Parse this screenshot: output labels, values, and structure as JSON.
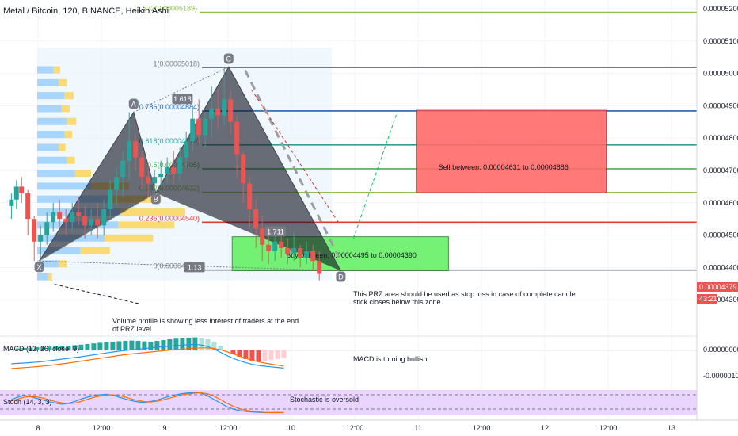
{
  "header": {
    "title": "Metal / Bitcoin, 120, BINANCE, Heikin Ashi"
  },
  "price_axis": {
    "ticks": [
      "0.00005200",
      "0.00005100",
      "0.00005000",
      "0.00004900",
      "0.00004800",
      "0.00004700",
      "0.00004600",
      "0.00004500",
      "0.00004400",
      "0.00004300"
    ],
    "tick_values": [
      5.2e-05,
      5.1e-05,
      5e-05,
      4.9e-05,
      4.8e-05,
      4.7e-05,
      4.6e-05,
      4.5e-05,
      4.4e-05,
      4.3e-05
    ],
    "current_price": "0.00004379",
    "countdown": "43:21"
  },
  "time_axis": {
    "labels": [
      "8",
      "12:00",
      "9",
      "12:00",
      "10",
      "12:00",
      "11",
      "12:00",
      "12",
      "12:00",
      "13"
    ],
    "label_t": [
      0,
      1,
      2,
      3,
      4,
      5,
      6,
      7,
      8,
      9,
      10
    ]
  },
  "colors": {
    "up": "#26a69a",
    "down": "#ef5350",
    "pattern_fill": "#131722",
    "sell_box": "#ff6b6b",
    "buy_box": "#5ef05e",
    "macd_panel": "#ffffff",
    "stoch_panel": "#e9d5ff",
    "fib_green": "#4caf50",
    "fib_teal": "#2aa198",
    "fib_blue": "#2962ff",
    "fib_red": "#e53935",
    "fib_grey": "#787b86",
    "fib_lime": "#8bc34a"
  },
  "fib_levels": [
    {
      "label": "1.272(0.00005189)",
      "price": 5.189e-05,
      "color": "#8bc34a"
    },
    {
      "label": "1(0.00005018)",
      "price": 5.018e-05,
      "color": "#787b86"
    },
    {
      "label": "0.786(0.00004884)",
      "price": 4.884e-05,
      "color": "#1e63b5"
    },
    {
      "label": "0.618(0.00004779)",
      "price": 4.779e-05,
      "color": "#2aa198"
    },
    {
      "label": "0.5(0.00004705)",
      "price": 4.705e-05,
      "color": "#4caf50"
    },
    {
      "label": "0.382(0.00004632)",
      "price": 4.632e-05,
      "color": "#8bc34a"
    },
    {
      "label": "0.236(0.00004540)",
      "price": 4.54e-05,
      "color": "#e53935"
    },
    {
      "label": "0(0.00004392)",
      "price": 4.392e-05,
      "color": "#787b86"
    }
  ],
  "pattern_points": [
    {
      "label": "X",
      "t": 0.02,
      "p": 4.42e-05
    },
    {
      "label": "A",
      "t": 1.51,
      "p": 4.88e-05
    },
    {
      "label": "B",
      "t": 1.86,
      "p": 4.63e-05
    },
    {
      "label": "C",
      "t": 3.01,
      "p": 5.02e-05
    },
    {
      "label": "D",
      "t": 4.78,
      "p": 4.39e-05
    }
  ],
  "ratios": [
    {
      "label": "1.618",
      "t": 2.28,
      "p": 4.92e-05
    },
    {
      "label": "1.711",
      "t": 3.75,
      "p": 4.51e-05
    },
    {
      "label": "1.13",
      "t": 2.47,
      "p": 4.4e-05
    }
  ],
  "zones": {
    "sell": {
      "label": "Sell between: 0.00004631 to 0.00004886",
      "t0": 5.97,
      "t1": 8.97,
      "p0": 4.886e-05,
      "p1": 4.631e-05
    },
    "buy": {
      "label": "Buy between: 0.00004495 to 0.00004390",
      "t0": 3.19,
      "t1": 6.48,
      "p0": 4.495e-05,
      "p1": 4.39e-05
    }
  },
  "candles": [
    {
      "t": -0.42,
      "o": 4.59e-05,
      "h": 4.63e-05,
      "c": 4.61e-05,
      "l": 4.55e-05,
      "dir": "up"
    },
    {
      "t": -0.34,
      "o": 4.61e-05,
      "h": 4.67e-05,
      "c": 4.65e-05,
      "l": 4.58e-05,
      "dir": "up"
    },
    {
      "t": -0.26,
      "o": 4.65e-05,
      "h": 4.68e-05,
      "c": 4.63e-05,
      "l": 4.6e-05,
      "dir": "down"
    },
    {
      "t": -0.16,
      "o": 4.63e-05,
      "h": 4.64e-05,
      "c": 4.55e-05,
      "l": 4.5e-05,
      "dir": "down"
    },
    {
      "t": -0.06,
      "o": 4.55e-05,
      "h": 4.56e-05,
      "c": 4.48e-05,
      "l": 4.42e-05,
      "dir": "down"
    },
    {
      "t": 0.04,
      "o": 4.48e-05,
      "h": 4.53e-05,
      "c": 4.5e-05,
      "l": 4.43e-05,
      "dir": "up"
    },
    {
      "t": 0.14,
      "o": 4.5e-05,
      "h": 4.57e-05,
      "c": 4.54e-05,
      "l": 4.47e-05,
      "dir": "up"
    },
    {
      "t": 0.24,
      "o": 4.54e-05,
      "h": 4.6e-05,
      "c": 4.57e-05,
      "l": 4.51e-05,
      "dir": "up"
    },
    {
      "t": 0.34,
      "o": 4.57e-05,
      "h": 4.61e-05,
      "c": 4.55e-05,
      "l": 4.52e-05,
      "dir": "down"
    },
    {
      "t": 0.44,
      "o": 4.55e-05,
      "h": 4.58e-05,
      "c": 4.54e-05,
      "l": 4.5e-05,
      "dir": "down"
    },
    {
      "t": 0.54,
      "o": 4.54e-05,
      "h": 4.6e-05,
      "c": 4.57e-05,
      "l": 4.51e-05,
      "dir": "up"
    },
    {
      "t": 0.64,
      "o": 4.57e-05,
      "h": 4.62e-05,
      "c": 4.56e-05,
      "l": 4.53e-05,
      "dir": "down"
    },
    {
      "t": 0.74,
      "o": 4.56e-05,
      "h": 4.59e-05,
      "c": 4.53e-05,
      "l": 4.49e-05,
      "dir": "down"
    },
    {
      "t": 0.84,
      "o": 4.53e-05,
      "h": 4.58e-05,
      "c": 4.55e-05,
      "l": 4.5e-05,
      "dir": "up"
    },
    {
      "t": 0.94,
      "o": 4.55e-05,
      "h": 4.6e-05,
      "c": 4.53e-05,
      "l": 4.49e-05,
      "dir": "down"
    },
    {
      "t": 1.04,
      "o": 4.53e-05,
      "h": 4.61e-05,
      "c": 4.58e-05,
      "l": 4.5e-05,
      "dir": "up"
    },
    {
      "t": 1.14,
      "o": 4.58e-05,
      "h": 4.67e-05,
      "c": 4.64e-05,
      "l": 4.55e-05,
      "dir": "up"
    },
    {
      "t": 1.24,
      "o": 4.64e-05,
      "h": 4.71e-05,
      "c": 4.68e-05,
      "l": 4.59e-05,
      "dir": "up"
    },
    {
      "t": 1.34,
      "o": 4.68e-05,
      "h": 4.76e-05,
      "c": 4.73e-05,
      "l": 4.62e-05,
      "dir": "up"
    },
    {
      "t": 1.44,
      "o": 4.73e-05,
      "h": 4.88e-05,
      "c": 4.79e-05,
      "l": 4.67e-05,
      "dir": "up"
    },
    {
      "t": 1.54,
      "o": 4.79e-05,
      "h": 4.81e-05,
      "c": 4.74e-05,
      "l": 4.7e-05,
      "dir": "down"
    },
    {
      "t": 1.64,
      "o": 4.74e-05,
      "h": 4.76e-05,
      "c": 4.68e-05,
      "l": 4.64e-05,
      "dir": "down"
    },
    {
      "t": 1.74,
      "o": 4.68e-05,
      "h": 4.72e-05,
      "c": 4.66e-05,
      "l": 4.62e-05,
      "dir": "down"
    },
    {
      "t": 1.84,
      "o": 4.66e-05,
      "h": 4.7e-05,
      "c": 4.68e-05,
      "l": 4.63e-05,
      "dir": "up"
    },
    {
      "t": 1.94,
      "o": 4.68e-05,
      "h": 4.73e-05,
      "c": 4.69e-05,
      "l": 4.65e-05,
      "dir": "up"
    },
    {
      "t": 2.04,
      "o": 4.69e-05,
      "h": 4.74e-05,
      "c": 4.71e-05,
      "l": 4.66e-05,
      "dir": "up"
    },
    {
      "t": 2.14,
      "o": 4.71e-05,
      "h": 4.76e-05,
      "c": 4.69e-05,
      "l": 4.66e-05,
      "dir": "down"
    },
    {
      "t": 2.24,
      "o": 4.69e-05,
      "h": 4.77e-05,
      "c": 4.74e-05,
      "l": 4.67e-05,
      "dir": "up"
    },
    {
      "t": 2.34,
      "o": 4.74e-05,
      "h": 4.82e-05,
      "c": 4.79e-05,
      "l": 4.71e-05,
      "dir": "up"
    },
    {
      "t": 2.44,
      "o": 4.79e-05,
      "h": 4.9e-05,
      "c": 4.86e-05,
      "l": 4.76e-05,
      "dir": "up"
    },
    {
      "t": 2.54,
      "o": 4.86e-05,
      "h": 4.92e-05,
      "c": 4.81e-05,
      "l": 4.78e-05,
      "dir": "down"
    },
    {
      "t": 2.64,
      "o": 4.81e-05,
      "h": 4.88e-05,
      "c": 4.86e-05,
      "l": 4.77e-05,
      "dir": "up"
    },
    {
      "t": 2.74,
      "o": 4.86e-05,
      "h": 4.96e-05,
      "c": 4.89e-05,
      "l": 4.8e-05,
      "dir": "up"
    },
    {
      "t": 2.84,
      "o": 4.89e-05,
      "h": 4.95e-05,
      "c": 4.87e-05,
      "l": 4.83e-05,
      "dir": "down"
    },
    {
      "t": 2.94,
      "o": 4.87e-05,
      "h": 5.02e-05,
      "c": 4.92e-05,
      "l": 4.84e-05,
      "dir": "up"
    },
    {
      "t": 3.04,
      "o": 4.92e-05,
      "h": 4.95e-05,
      "c": 4.85e-05,
      "l": 4.81e-05,
      "dir": "down"
    },
    {
      "t": 3.14,
      "o": 4.85e-05,
      "h": 4.87e-05,
      "c": 4.75e-05,
      "l": 4.68e-05,
      "dir": "down"
    },
    {
      "t": 3.24,
      "o": 4.75e-05,
      "h": 4.76e-05,
      "c": 4.66e-05,
      "l": 4.6e-05,
      "dir": "down"
    },
    {
      "t": 3.34,
      "o": 4.66e-05,
      "h": 4.68e-05,
      "c": 4.58e-05,
      "l": 4.52e-05,
      "dir": "down"
    },
    {
      "t": 3.44,
      "o": 4.58e-05,
      "h": 4.61e-05,
      "c": 4.52e-05,
      "l": 4.46e-05,
      "dir": "down"
    },
    {
      "t": 3.54,
      "o": 4.52e-05,
      "h": 4.56e-05,
      "c": 4.47e-05,
      "l": 4.42e-05,
      "dir": "down"
    },
    {
      "t": 3.64,
      "o": 4.47e-05,
      "h": 4.5e-05,
      "c": 4.45e-05,
      "l": 4.41e-05,
      "dir": "down"
    },
    {
      "t": 3.74,
      "o": 4.45e-05,
      "h": 4.52e-05,
      "c": 4.48e-05,
      "l": 4.42e-05,
      "dir": "up"
    },
    {
      "t": 3.84,
      "o": 4.48e-05,
      "h": 4.51e-05,
      "c": 4.46e-05,
      "l": 4.43e-05,
      "dir": "down"
    },
    {
      "t": 3.94,
      "o": 4.46e-05,
      "h": 4.49e-05,
      "c": 4.44e-05,
      "l": 4.41e-05,
      "dir": "down"
    },
    {
      "t": 4.04,
      "o": 4.44e-05,
      "h": 4.51e-05,
      "c": 4.46e-05,
      "l": 4.42e-05,
      "dir": "up"
    },
    {
      "t": 4.14,
      "o": 4.46e-05,
      "h": 4.47e-05,
      "c": 4.43e-05,
      "l": 4.4e-05,
      "dir": "down"
    },
    {
      "t": 4.24,
      "o": 4.43e-05,
      "h": 4.48e-05,
      "c": 4.45e-05,
      "l": 4.41e-05,
      "dir": "up"
    },
    {
      "t": 4.34,
      "o": 4.45e-05,
      "h": 4.47e-05,
      "c": 4.42e-05,
      "l": 4.39e-05,
      "dir": "down"
    },
    {
      "t": 4.44,
      "o": 4.42e-05,
      "h": 4.45e-05,
      "c": 4.38e-05,
      "l": 4.36e-05,
      "dir": "down"
    }
  ],
  "volume_profile": [
    {
      "p": 5.01e-05,
      "a": 0.12,
      "b": 0.05
    },
    {
      "p": 4.97e-05,
      "a": 0.16,
      "b": 0.06
    },
    {
      "p": 4.93e-05,
      "a": 0.2,
      "b": 0.07
    },
    {
      "p": 4.89e-05,
      "a": 0.18,
      "b": 0.06
    },
    {
      "p": 4.85e-05,
      "a": 0.22,
      "b": 0.07
    },
    {
      "p": 4.81e-05,
      "a": 0.2,
      "b": 0.06
    },
    {
      "p": 4.77e-05,
      "a": 0.16,
      "b": 0.05
    },
    {
      "p": 4.73e-05,
      "a": 0.22,
      "b": 0.06
    },
    {
      "p": 4.69e-05,
      "a": 0.28,
      "b": 0.12
    },
    {
      "p": 4.65e-05,
      "a": 0.4,
      "b": 0.28
    },
    {
      "p": 4.61e-05,
      "a": 0.52,
      "b": 0.4
    },
    {
      "p": 4.57e-05,
      "a": 0.62,
      "b": 0.48
    },
    {
      "p": 4.53e-05,
      "a": 0.6,
      "b": 0.42
    },
    {
      "p": 4.49e-05,
      "a": 0.5,
      "b": 0.36
    },
    {
      "p": 4.45e-05,
      "a": 0.32,
      "b": 0.22
    },
    {
      "p": 4.41e-05,
      "a": 0.16,
      "b": 0.06
    },
    {
      "p": 4.37e-05,
      "a": 0.08,
      "b": 0.03
    }
  ],
  "annotations": {
    "prz_note": "This PRZ area should be used as stop loss in case of complete candle stick closes below this zone",
    "volume_note": "Volume profile is showing less interest of traders at the end of PRZ level",
    "macd_note": "MACD is turning bullish",
    "stoch_note": "Stochastic is oversold"
  },
  "macd": {
    "label": "MACD (12, 26, close, 9)",
    "axis_labels": [
      "0.00000000",
      "-0.00000100"
    ],
    "axis_values": [
      0.0,
      -1e-06
    ],
    "histogram": [
      0.1,
      0.12,
      0.15,
      0.17,
      0.2,
      0.22,
      0.24,
      0.26,
      0.28,
      0.3,
      0.33,
      0.36,
      0.4,
      0.44,
      0.48,
      0.52,
      0.55,
      0.58,
      0.6,
      0.62,
      0.6,
      0.57,
      0.55,
      0.6,
      0.65,
      0.7,
      0.74,
      0.77,
      0.8,
      0.82,
      0.78,
      0.7,
      0.55,
      0.3,
      0.05,
      -0.2,
      -0.4,
      -0.55,
      -0.65,
      -0.7,
      -0.68,
      -0.62,
      -0.55,
      -0.48
    ],
    "macd_line": [
      -0.35,
      -0.32,
      -0.3,
      -0.27,
      -0.24,
      -0.2,
      -0.15,
      -0.1,
      -0.05,
      0.0,
      0.05,
      0.1,
      0.16,
      0.22,
      0.28,
      0.34,
      0.4,
      0.45,
      0.5,
      0.54,
      0.58,
      0.62,
      0.66,
      0.7,
      0.74,
      0.77,
      0.8,
      0.83,
      0.86,
      0.88,
      0.84,
      0.74,
      0.58,
      0.38,
      0.18,
      0.0,
      -0.15,
      -0.28,
      -0.38,
      -0.45,
      -0.5,
      -0.54,
      -0.58,
      -0.62
    ],
    "signal_line": [
      -0.55,
      -0.52,
      -0.49,
      -0.46,
      -0.43,
      -0.39,
      -0.35,
      -0.3,
      -0.25,
      -0.2,
      -0.14,
      -0.08,
      -0.02,
      0.04,
      0.1,
      0.16,
      0.22,
      0.28,
      0.33,
      0.38,
      0.42,
      0.46,
      0.5,
      0.54,
      0.58,
      0.62,
      0.65,
      0.68,
      0.71,
      0.74,
      0.76,
      0.76,
      0.72,
      0.64,
      0.52,
      0.38,
      0.24,
      0.1,
      -0.02,
      -0.12,
      -0.2,
      -0.27,
      -0.33,
      -0.38
    ]
  },
  "stoch": {
    "label": "Stoch (14, 3, 3)",
    "k": [
      60,
      70,
      78,
      72,
      65,
      58,
      50,
      45,
      40,
      44,
      52,
      62,
      70,
      76,
      80,
      82,
      78,
      70,
      62,
      55,
      50,
      48,
      52,
      58,
      66,
      74,
      80,
      85,
      88,
      90,
      86,
      75,
      60,
      45,
      30,
      20,
      14,
      10,
      8,
      6,
      5,
      5,
      6,
      5
    ],
    "d": [
      55,
      62,
      70,
      73,
      71,
      66,
      58,
      51,
      46,
      43,
      45,
      52,
      61,
      69,
      75,
      79,
      80,
      77,
      70,
      62,
      56,
      51,
      50,
      53,
      59,
      66,
      73,
      80,
      84,
      87,
      88,
      84,
      74,
      60,
      45,
      32,
      22,
      15,
      11,
      8,
      6,
      5,
      5,
      5
    ]
  }
}
